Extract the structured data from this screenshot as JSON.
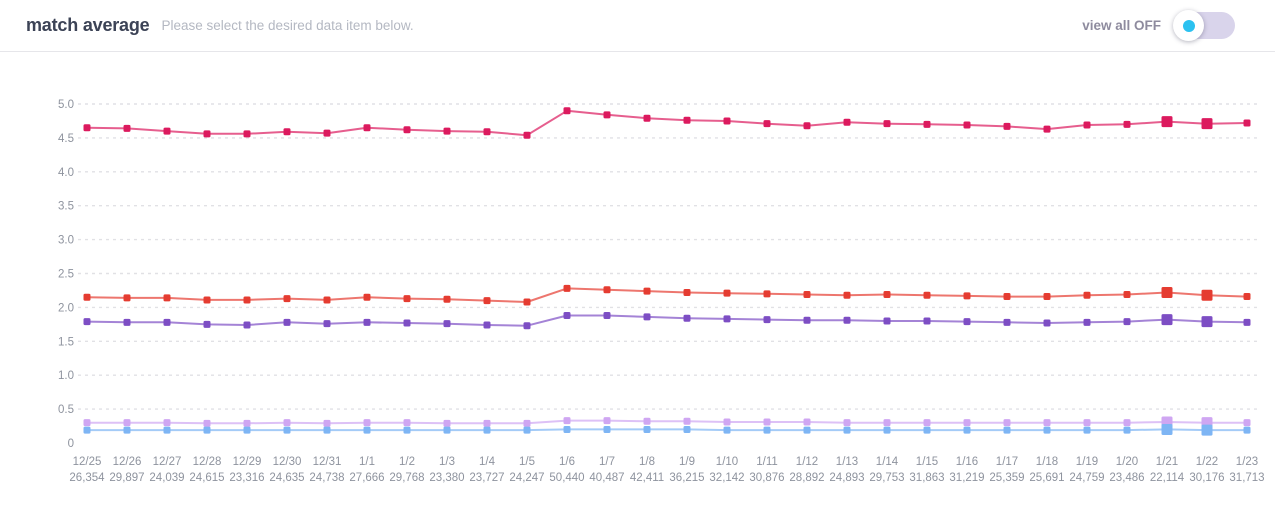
{
  "header": {
    "title": "match average",
    "subtitle": "Please select the desired data item below.",
    "view_all_label": "view all OFF",
    "toggle_state": "off"
  },
  "colors": {
    "title_text": "#3c4356",
    "subtitle_text": "#b4b8c2",
    "view_all_text": "#8e8b9e",
    "toggle_track": "#d9d4eb",
    "toggle_dot": "#2bc1f0",
    "header_border": "#e6e6ea",
    "grid_line": "#e1e1e5",
    "axis_text": "#8e939e"
  },
  "chart_data": {
    "type": "line",
    "title": "match average",
    "xlabel": "",
    "ylabel": "",
    "ylim": [
      0,
      5.0
    ],
    "yticks": [
      0,
      0.5,
      1.0,
      1.5,
      2.0,
      2.5,
      3.0,
      3.5,
      4.0,
      4.5,
      5.0
    ],
    "ytick_labels": [
      "0",
      "0.5",
      "1.0",
      "1.5",
      "2.0",
      "2.5",
      "3.0",
      "3.5",
      "4.0",
      "4.5",
      "5.0"
    ],
    "grid": "horizontal-dashed",
    "legend": "none",
    "marker": "square",
    "emphasized_indices": [
      27,
      28
    ],
    "categories": [
      "12/25",
      "12/26",
      "12/27",
      "12/28",
      "12/29",
      "12/30",
      "12/31",
      "1/1",
      "1/2",
      "1/3",
      "1/4",
      "1/5",
      "1/6",
      "1/7",
      "1/8",
      "1/9",
      "1/10",
      "1/11",
      "1/12",
      "1/13",
      "1/14",
      "1/15",
      "1/16",
      "1/17",
      "1/18",
      "1/19",
      "1/20",
      "1/21",
      "1/22",
      "1/23"
    ],
    "category_sublabels": [
      "26,354",
      "29,897",
      "24,039",
      "24,615",
      "23,316",
      "24,635",
      "24,738",
      "27,666",
      "29,768",
      "23,380",
      "23,727",
      "24,247",
      "50,440",
      "40,487",
      "42,411",
      "36,215",
      "32,142",
      "30,876",
      "28,892",
      "24,893",
      "29,753",
      "31,863",
      "31,219",
      "25,359",
      "25,691",
      "24,759",
      "23,486",
      "22,114",
      "30,176",
      "31,713"
    ],
    "series": [
      {
        "name": "crimson",
        "color": "#dc1a5e",
        "values": [
          4.65,
          4.64,
          4.6,
          4.56,
          4.56,
          4.59,
          4.57,
          4.65,
          4.62,
          4.6,
          4.59,
          4.54,
          4.9,
          4.84,
          4.79,
          4.76,
          4.75,
          4.71,
          4.68,
          4.73,
          4.71,
          4.7,
          4.69,
          4.67,
          4.63,
          4.69,
          4.7,
          4.74,
          4.71,
          4.72
        ]
      },
      {
        "name": "red",
        "color": "#e53c31",
        "values": [
          2.15,
          2.14,
          2.14,
          2.11,
          2.11,
          2.13,
          2.11,
          2.15,
          2.13,
          2.12,
          2.1,
          2.08,
          2.28,
          2.26,
          2.24,
          2.22,
          2.21,
          2.2,
          2.19,
          2.18,
          2.19,
          2.18,
          2.17,
          2.16,
          2.16,
          2.18,
          2.19,
          2.22,
          2.18,
          2.16
        ]
      },
      {
        "name": "purple",
        "color": "#7d4ec4",
        "values": [
          1.79,
          1.78,
          1.78,
          1.75,
          1.74,
          1.78,
          1.76,
          1.78,
          1.77,
          1.76,
          1.74,
          1.73,
          1.88,
          1.88,
          1.86,
          1.84,
          1.83,
          1.82,
          1.81,
          1.81,
          1.8,
          1.8,
          1.79,
          1.78,
          1.77,
          1.78,
          1.79,
          1.82,
          1.79,
          1.78
        ]
      },
      {
        "name": "lavender",
        "color": "#cfa6f2",
        "values": [
          0.3,
          0.3,
          0.3,
          0.29,
          0.29,
          0.3,
          0.29,
          0.3,
          0.3,
          0.29,
          0.29,
          0.29,
          0.33,
          0.33,
          0.32,
          0.32,
          0.31,
          0.31,
          0.31,
          0.3,
          0.3,
          0.3,
          0.3,
          0.3,
          0.3,
          0.3,
          0.3,
          0.31,
          0.3,
          0.3
        ]
      },
      {
        "name": "blue",
        "color": "#7eb5f4",
        "values": [
          0.19,
          0.19,
          0.19,
          0.19,
          0.19,
          0.19,
          0.19,
          0.19,
          0.19,
          0.19,
          0.19,
          0.19,
          0.2,
          0.2,
          0.2,
          0.2,
          0.19,
          0.19,
          0.19,
          0.19,
          0.19,
          0.19,
          0.19,
          0.19,
          0.19,
          0.19,
          0.19,
          0.2,
          0.19,
          0.19
        ]
      }
    ]
  }
}
